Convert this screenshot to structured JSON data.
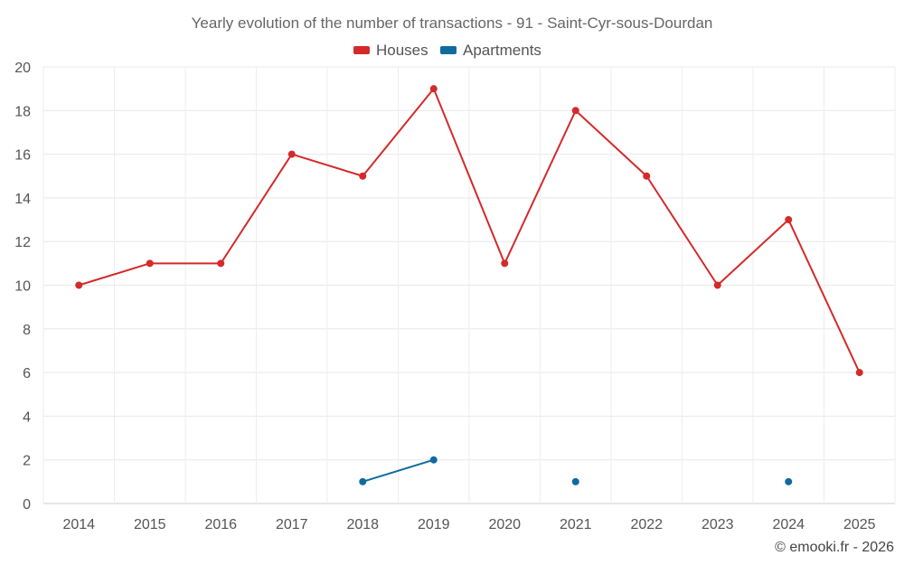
{
  "chart_data": {
    "type": "line",
    "title": "Yearly evolution of the number of transactions - 91 - Saint-Cyr-sous-Dourdan",
    "categories": [
      "2014",
      "2015",
      "2016",
      "2017",
      "2018",
      "2019",
      "2020",
      "2021",
      "2022",
      "2023",
      "2024",
      "2025"
    ],
    "series": [
      {
        "name": "Houses",
        "color": "#d42a2a",
        "values": [
          10,
          11,
          11,
          16,
          15,
          19,
          11,
          18,
          15,
          10,
          13,
          6
        ]
      },
      {
        "name": "Apartments",
        "color": "#0f6b9e",
        "values": [
          null,
          null,
          null,
          null,
          1,
          2,
          null,
          1,
          null,
          null,
          1,
          null
        ]
      }
    ],
    "ylim": [
      0,
      20
    ],
    "yticks": [
      "0",
      "2",
      "4",
      "6",
      "8",
      "10",
      "12",
      "14",
      "16",
      "18",
      "20"
    ],
    "xlabel": "",
    "ylabel": "",
    "legend": "top-center",
    "grid": true
  },
  "credit": "© emooki.fr - 2026"
}
